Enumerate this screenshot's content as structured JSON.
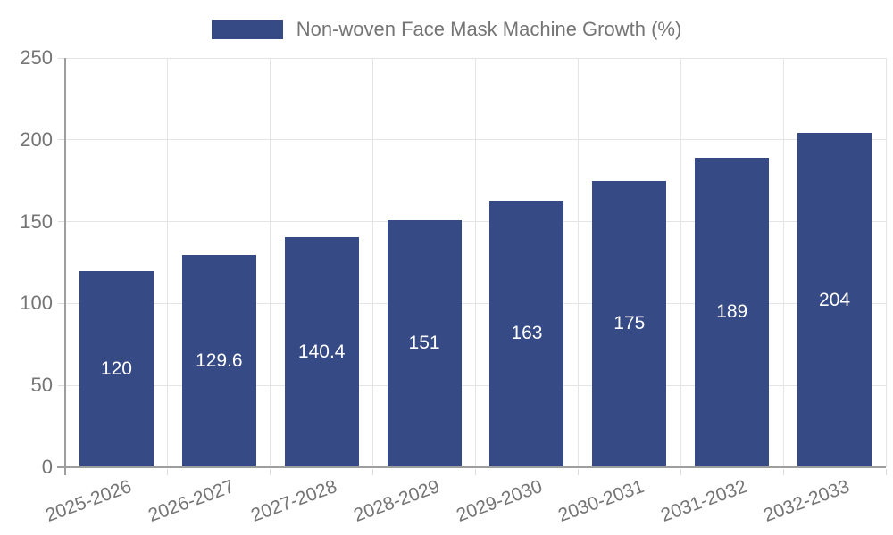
{
  "chart_data": {
    "type": "bar",
    "title": "",
    "legend_label": "Non-woven Face Mask Machine Growth (%)",
    "legend_position": "top",
    "categories": [
      "2025-2026",
      "2026-2027",
      "2027-2028",
      "2028-2029",
      "2029-2030",
      "2030-2031",
      "2031-2032",
      "2032-2033"
    ],
    "values": [
      120,
      129.6,
      140.4,
      151,
      163,
      175,
      189,
      204
    ],
    "ylim": [
      0,
      250
    ],
    "yticks": [
      0,
      50,
      100,
      150,
      200,
      250
    ],
    "grid": true,
    "colors": {
      "bar": "#364a85",
      "grid": "#e5e5e5",
      "axis": "#9e9e9e",
      "tick": "#dcdcdc",
      "text": "#757575",
      "value_label": "#ffffff",
      "background": "#ffffff"
    }
  }
}
